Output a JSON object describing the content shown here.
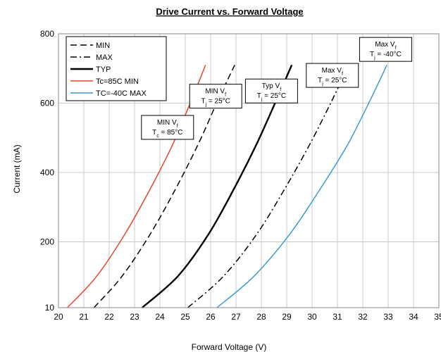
{
  "chart_data": {
    "type": "line",
    "title": "Drive Current vs. Forward Voltage",
    "xlabel": "Forward Voltage (V)",
    "ylabel": "Current (mA)",
    "xlim": [
      20,
      35
    ],
    "ylim": [
      10,
      800
    ],
    "x_ticks": [
      "20",
      "21",
      "22",
      "23",
      "24",
      "25",
      "26",
      "27",
      "28",
      "29",
      "30",
      "31",
      "32",
      "33",
      "34",
      "35"
    ],
    "y_ticks": [
      "10",
      "200",
      "400",
      "600",
      "800"
    ],
    "grid": true,
    "legend_position": "top-left",
    "series": [
      {
        "name": "MIN",
        "color": "#000000",
        "style": "dashed",
        "x": [
          21.4,
          22.5,
          23.6,
          24.6,
          25.5,
          26.3,
          26.95
        ],
        "y": [
          10,
          100,
          220,
          350,
          480,
          610,
          710
        ]
      },
      {
        "name": "MAX",
        "color": "#000000",
        "style": "dashdot",
        "x": [
          25.1,
          26.5,
          27.8,
          28.9,
          29.9,
          30.8,
          31.45
        ],
        "y": [
          10,
          100,
          220,
          350,
          480,
          610,
          710
        ]
      },
      {
        "name": "TYP",
        "color": "#000000",
        "style": "solid",
        "x": [
          23.3,
          24.7,
          25.9,
          26.9,
          27.8,
          28.6,
          29.2
        ],
        "y": [
          10,
          100,
          220,
          350,
          480,
          610,
          710
        ]
      },
      {
        "name": "Tc=85C MIN",
        "color": "#e8452c",
        "style": "solid",
        "x": [
          20.35,
          21.5,
          22.6,
          23.6,
          24.5,
          25.25,
          25.8
        ],
        "y": [
          10,
          100,
          220,
          350,
          480,
          610,
          710
        ]
      },
      {
        "name": "TC=-40C MAX",
        "color": "#3d9bd3",
        "style": "solid",
        "x": [
          26.25,
          27.7,
          29.1,
          30.3,
          31.4,
          32.3,
          32.95
        ],
        "y": [
          10,
          100,
          220,
          350,
          480,
          610,
          710
        ]
      }
    ],
    "annotations": [
      {
        "text": "MIN Vf Tc = 85°C",
        "x": 24.3,
        "y": 530
      },
      {
        "text": "MIN Vf Tj = 25°C",
        "x": 26.2,
        "y": 620
      },
      {
        "text": "Typ Vf Tj = 25°C",
        "x": 28.4,
        "y": 635
      },
      {
        "text": "Max Vf Tj = 25°C",
        "x": 30.8,
        "y": 680
      },
      {
        "text": "Max Vf Tj = -40°C",
        "x": 32.9,
        "y": 755
      }
    ]
  }
}
